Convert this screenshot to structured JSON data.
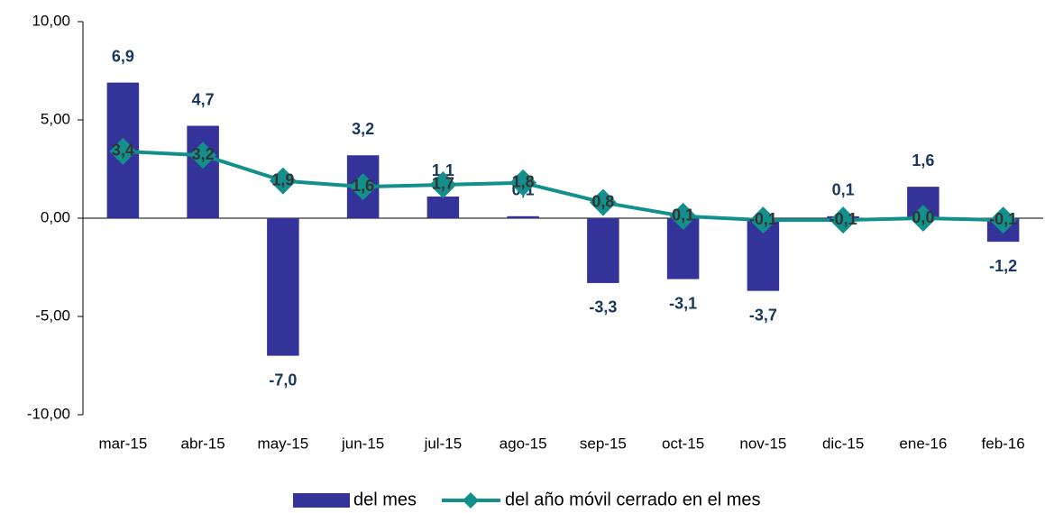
{
  "chart_data": {
    "type": "bar",
    "categories": [
      "mar-15",
      "abr-15",
      "may-15",
      "jun-15",
      "jul-15",
      "ago-15",
      "sep-15",
      "oct-15",
      "nov-15",
      "dic-15",
      "ene-16",
      "feb-16"
    ],
    "series": [
      {
        "name": "del mes",
        "type": "bar",
        "color": "#333399",
        "values": [
          6.9,
          4.7,
          -7.0,
          3.2,
          1.1,
          0.1,
          -3.3,
          -3.1,
          -3.7,
          0.1,
          1.6,
          -1.2
        ],
        "value_labels": [
          "6,9",
          "4,7",
          "-7,0",
          "3,2",
          "1,1",
          "0,1",
          "-3,3",
          "-3,1",
          "-3,7",
          "0,1",
          "1,6",
          "-1,2"
        ]
      },
      {
        "name": "del año móvil cerrado en el mes",
        "type": "line",
        "color": "#138f8c",
        "values": [
          3.4,
          3.2,
          1.9,
          1.6,
          1.7,
          1.8,
          0.8,
          0.1,
          -0.1,
          -0.1,
          0.0,
          -0.1
        ],
        "value_labels": [
          "3,4",
          "3,2",
          "1,9",
          "1,6",
          "1,7",
          "1,8",
          "0,8",
          "0,1",
          "-0,1",
          "-0,1",
          "0,0",
          "-0,1"
        ]
      }
    ],
    "ylim": [
      -10,
      10
    ],
    "yticks": [
      {
        "value": -10,
        "label": "-10,00"
      },
      {
        "value": -5,
        "label": "-5,00"
      },
      {
        "value": 0,
        "label": "0,00"
      },
      {
        "value": 5,
        "label": "5,00"
      },
      {
        "value": 10,
        "label": "10,00"
      }
    ],
    "grid": false,
    "legend": "bottom"
  }
}
